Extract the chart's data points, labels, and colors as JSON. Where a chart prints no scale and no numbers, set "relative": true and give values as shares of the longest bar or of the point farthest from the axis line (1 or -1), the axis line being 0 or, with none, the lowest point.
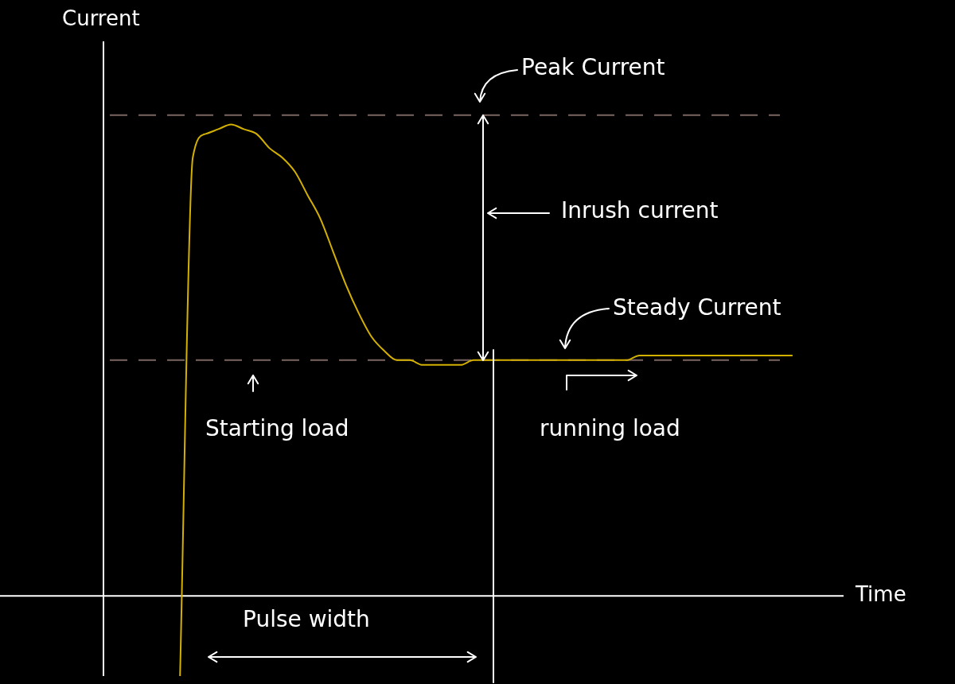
{
  "chart_data": {
    "type": "line",
    "relative": true,
    "tick_labels": false,
    "xlabel": "Time",
    "ylabel": "Current",
    "color": "#d4b000",
    "line_style": "solid",
    "marker": "none",
    "categories": [
      null,
      null,
      null,
      null,
      null,
      null,
      null,
      null,
      null,
      null,
      null,
      null,
      null,
      null,
      null,
      null,
      null,
      null,
      null,
      null,
      null,
      null,
      null,
      null,
      null,
      null,
      null,
      null,
      null,
      null,
      null,
      null,
      null,
      null,
      null,
      null,
      null,
      null,
      null,
      null,
      null,
      null,
      null,
      null,
      null,
      null,
      null,
      null,
      null,
      null,
      null,
      null,
      null,
      null,
      null,
      null,
      null,
      null,
      null
    ],
    "values": [
      null,
      null,
      null,
      null,
      null,
      null,
      -0.17,
      0.93,
      0.98,
      0.99,
      1,
      0.99,
      0.98,
      0.95,
      0.93,
      0.9,
      0.85,
      0.8,
      0.73,
      0.66,
      0.6,
      0.55,
      0.52,
      0.5,
      0.5,
      0.49,
      0.49,
      0.49,
      0.49,
      0.5,
      0.5,
      0.5,
      0.5,
      0.5,
      0.5,
      0.5,
      0.5,
      0.5,
      0.5,
      0.5,
      0.5,
      0.5,
      0.51,
      0.51,
      0.51,
      0.51,
      0.51,
      0.51,
      0.51,
      0.51,
      0.51,
      0.51,
      0.51,
      0.51,
      0.51,
      null,
      null,
      null,
      null
    ],
    "ref_lines": [
      {
        "axis": "y",
        "value": 1.02,
        "color": "#7a6560",
        "line_style": "dashed"
      },
      {
        "axis": "y",
        "value": 0.5,
        "color": "#7a6560",
        "line_style": "dashed"
      }
    ],
    "annotations": [
      "Peak Current",
      "Inrush current",
      "Steady Current",
      "Starting load",
      "running load",
      "Pulse width"
    ]
  }
}
